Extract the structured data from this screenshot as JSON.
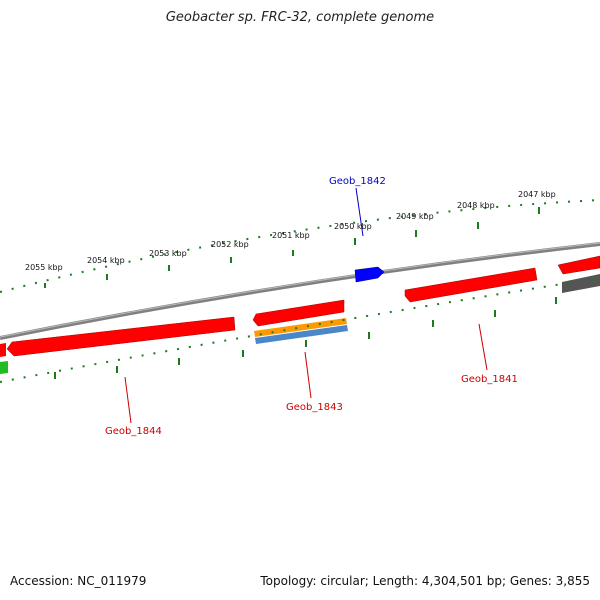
{
  "title": "Geobacter sp. FRC-32, complete genome",
  "footer": {
    "accession": "Accession: NC_011979",
    "summary": "Topology: circular; Length: 4,304,501 bp; Genes: 3,855"
  },
  "colors": {
    "backbone": "#808080",
    "ticks": "#1f7a1f",
    "forward_gene": "#ff0000",
    "reverse_gene": "#ff0000",
    "highlight_gene": "#0000ff",
    "orange_feature": "#ff9900",
    "blue_feature": "#4a86c8",
    "gray_feature": "#555555",
    "green_feature": "#22bb22"
  },
  "scale_labels": [
    "2055 kbp",
    "2054 kbp",
    "2053 kbp",
    "2052 kbp",
    "2051 kbp",
    "2050 kbp",
    "2049 kbp",
    "2048 kbp",
    "2047 kbp"
  ],
  "genes": {
    "geob_1842": "Geob_1842",
    "geob_1843": "Geob_1843",
    "geob_1844": "Geob_1844",
    "geob_1841": "Geob_1841"
  }
}
